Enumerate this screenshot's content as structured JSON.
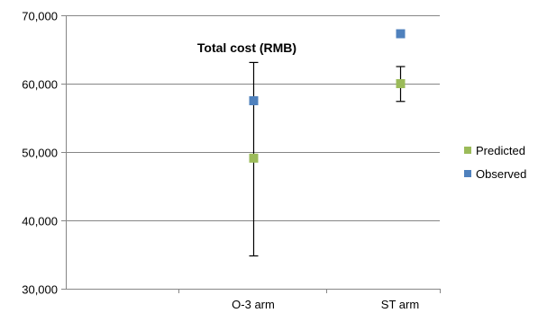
{
  "chart_data": {
    "type": "scatter",
    "title": "Total cost (RMB)",
    "xlabel": "",
    "ylabel": "",
    "categories": [
      "O-3 arm",
      "ST arm"
    ],
    "ylim": [
      30000,
      70000
    ],
    "yticks": [
      30000,
      40000,
      50000,
      60000,
      70000
    ],
    "ytick_labels": [
      "30,000",
      "40,000",
      "50,000",
      "60,000",
      "70,000"
    ],
    "grid": true,
    "legend_position": "right",
    "series": [
      {
        "name": "Predicted",
        "color": "#9BBB59",
        "values": [
          49100,
          60000
        ],
        "error_low": [
          34800,
          57400
        ],
        "error_high": [
          63100,
          62500
        ]
      },
      {
        "name": "Observed",
        "color": "#4F81BD",
        "values": [
          57500,
          67300
        ]
      }
    ]
  }
}
